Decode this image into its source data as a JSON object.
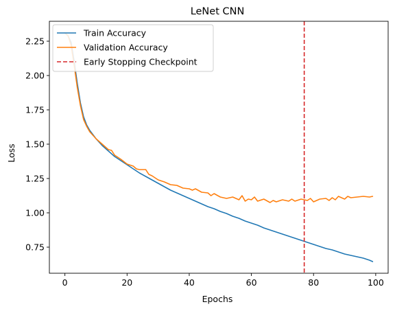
{
  "chart_data": {
    "type": "line",
    "title": "LeNet CNN",
    "xlabel": "Epochs",
    "ylabel": "Loss",
    "xlim": [
      -5,
      104
    ],
    "ylim": [
      0.56,
      2.395
    ],
    "xticks": [
      0,
      20,
      40,
      60,
      80,
      100
    ],
    "yticks": [
      0.75,
      1.0,
      1.25,
      1.5,
      1.75,
      2.0,
      2.25
    ],
    "grid": false,
    "legend_position": "top-left",
    "series": [
      {
        "name": "Train Accuracy",
        "color": "#1f77b4",
        "x": [
          0,
          1,
          2,
          3,
          4,
          5,
          6,
          7,
          8,
          9,
          10,
          12,
          14,
          16,
          18,
          20,
          22,
          24,
          26,
          28,
          30,
          32,
          34,
          36,
          38,
          40,
          42,
          44,
          46,
          48,
          50,
          52,
          54,
          56,
          58,
          60,
          62,
          64,
          66,
          68,
          70,
          72,
          74,
          76,
          78,
          80,
          82,
          84,
          86,
          88,
          90,
          92,
          94,
          96,
          98,
          99
        ],
        "y": [
          2.31,
          2.29,
          2.24,
          2.1,
          1.94,
          1.8,
          1.7,
          1.64,
          1.6,
          1.57,
          1.54,
          1.49,
          1.45,
          1.41,
          1.38,
          1.35,
          1.32,
          1.29,
          1.265,
          1.24,
          1.215,
          1.19,
          1.165,
          1.145,
          1.125,
          1.105,
          1.085,
          1.065,
          1.045,
          1.03,
          1.01,
          0.995,
          0.975,
          0.96,
          0.94,
          0.925,
          0.91,
          0.89,
          0.875,
          0.86,
          0.845,
          0.83,
          0.815,
          0.8,
          0.785,
          0.77,
          0.755,
          0.74,
          0.73,
          0.715,
          0.7,
          0.69,
          0.68,
          0.67,
          0.655,
          0.645
        ]
      },
      {
        "name": "Validation Accuracy",
        "color": "#ff7f0e",
        "x": [
          0,
          1,
          2,
          3,
          4,
          5,
          6,
          7,
          8,
          9,
          10,
          12,
          14,
          15,
          16,
          18,
          20,
          22,
          23,
          24,
          26,
          27,
          28,
          30,
          32,
          34,
          36,
          38,
          40,
          41,
          42,
          44,
          46,
          47,
          48,
          50,
          52,
          54,
          55,
          56,
          57,
          58,
          59,
          60,
          61,
          62,
          64,
          66,
          67,
          68,
          70,
          72,
          73,
          74,
          76,
          78,
          79,
          80,
          82,
          84,
          85,
          86,
          87,
          88,
          90,
          91,
          92,
          94,
          96,
          98,
          99
        ],
        "y": [
          2.31,
          2.29,
          2.22,
          2.07,
          1.91,
          1.78,
          1.68,
          1.63,
          1.59,
          1.565,
          1.54,
          1.5,
          1.46,
          1.455,
          1.42,
          1.39,
          1.355,
          1.34,
          1.32,
          1.315,
          1.315,
          1.28,
          1.27,
          1.24,
          1.225,
          1.205,
          1.2,
          1.18,
          1.175,
          1.165,
          1.175,
          1.15,
          1.145,
          1.125,
          1.14,
          1.115,
          1.105,
          1.115,
          1.105,
          1.095,
          1.125,
          1.085,
          1.1,
          1.095,
          1.115,
          1.085,
          1.1,
          1.075,
          1.09,
          1.08,
          1.095,
          1.085,
          1.1,
          1.085,
          1.1,
          1.09,
          1.105,
          1.08,
          1.1,
          1.105,
          1.09,
          1.11,
          1.095,
          1.12,
          1.1,
          1.12,
          1.11,
          1.115,
          1.12,
          1.115,
          1.12
        ]
      }
    ],
    "annotations": [
      {
        "type": "vline",
        "x": 77,
        "name": "Early Stopping Checkpoint",
        "color": "#d62728",
        "style": "dashed"
      }
    ]
  }
}
